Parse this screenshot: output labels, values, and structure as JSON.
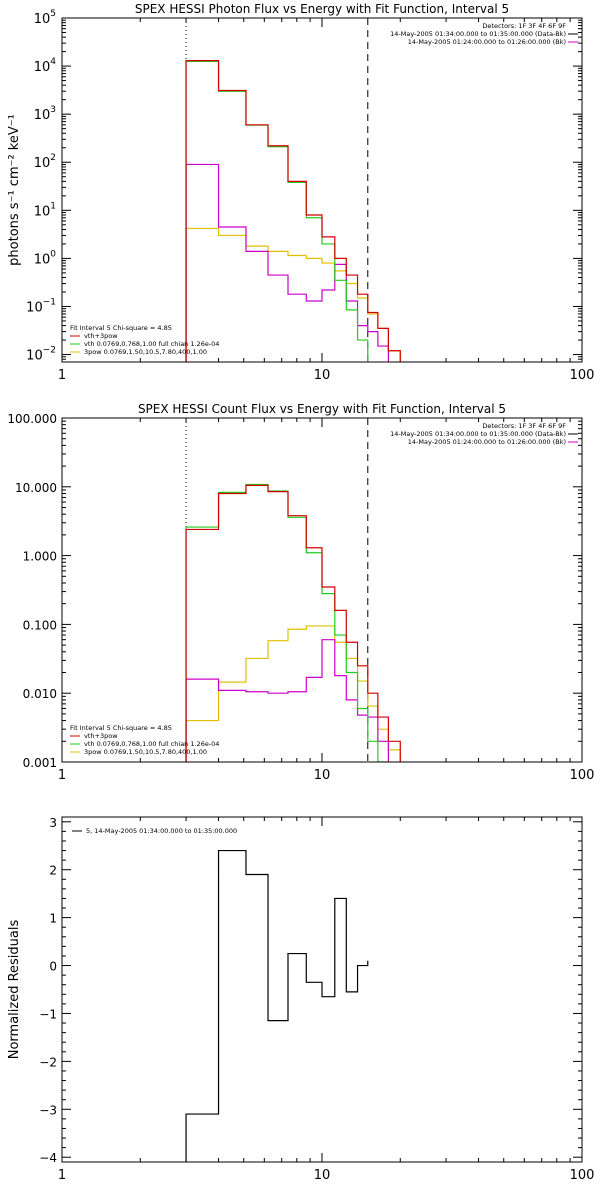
{
  "colors": {
    "total": "#d40000",
    "thermal": "#22cc22",
    "powerlaw": "#e0c000",
    "background": "#cc00cc",
    "data": "#000000",
    "frame": "#000000"
  },
  "chart_data": [
    {
      "type": "line",
      "id": "photon",
      "title": "SPEX HESSI Photon Flux vs Energy with Fit Function, Interval 5",
      "xlabel": "",
      "ylabel": "photons s⁻¹ cm⁻² keV⁻¹",
      "xscale": "log",
      "yscale": "log",
      "xlim": [
        1,
        100
      ],
      "ylim": [
        0.007,
        100000
      ],
      "x_ticks": [
        {
          "v": 1,
          "label": "1"
        },
        {
          "v": 10,
          "label": "10"
        },
        {
          "v": 100,
          "label": "100"
        }
      ],
      "y_ticks": [
        {
          "v": 0.01,
          "base": "10",
          "exp": "−2"
        },
        {
          "v": 0.1,
          "base": "10",
          "exp": "−1"
        },
        {
          "v": 1,
          "base": "10",
          "exp": "0"
        },
        {
          "v": 10,
          "base": "10",
          "exp": "1"
        },
        {
          "v": 100,
          "base": "10",
          "exp": "2"
        },
        {
          "v": 1000,
          "base": "10",
          "exp": "3"
        },
        {
          "v": 10000,
          "base": "10",
          "exp": "4"
        },
        {
          "v": 100000,
          "base": "10",
          "exp": "5"
        }
      ],
      "vlines": [
        {
          "x": 3.0,
          "style": "dotted"
        },
        {
          "x": 15.0,
          "style": "dashed"
        }
      ],
      "header": [
        "Detectors: 1F 3F 4F 6F 9F",
        "14-May-2005 01:34:00.000 to 01:35:00.000 (Data-Bk)",
        "14-May-2005 01:24:00.000 to 01:26:00.000 (Bk)"
      ],
      "legend": [
        "Fit Interval 5   Chi-square = 4.85",
        "vth+3pow",
        "vth 0.0769,0.768,1.00  full chian 1.26e-04",
        "3pow 0.0769,1.50,10.5,7.80,400,1.00"
      ],
      "edges": [
        3.0,
        4.0,
        5.1,
        6.2,
        7.4,
        8.7,
        10.0,
        11.2,
        12.4,
        13.7,
        15.0,
        16.4,
        18.0,
        20.0
      ],
      "series": [
        {
          "name": "total",
          "values": [
            13000,
            3100,
            600,
            220,
            40,
            8,
            2.8,
            1.0,
            0.45,
            0.18,
            0.075,
            0.035,
            0.012
          ]
        },
        {
          "name": "thermal",
          "values": [
            12500,
            3000,
            590,
            210,
            38,
            7,
            2.0,
            0.35,
            0.085,
            0.02,
            0.006
          ]
        },
        {
          "name": "powerlaw",
          "values": [
            4.2,
            3.0,
            1.8,
            1.4,
            1.15,
            1.0,
            0.8,
            0.55,
            0.3,
            0.15,
            0.07,
            0.035,
            0.012
          ]
        },
        {
          "name": "background",
          "values": [
            90,
            4.5,
            1.4,
            0.45,
            0.18,
            0.13,
            0.22,
            0.75,
            0.13,
            0.04,
            0.03,
            0.015
          ]
        }
      ]
    },
    {
      "type": "line",
      "id": "count",
      "title": "SPEX HESSI Count Flux vs Energy with Fit Function, Interval 5",
      "xlabel": "",
      "ylabel": "",
      "xscale": "log",
      "yscale": "log",
      "xlim": [
        1,
        100
      ],
      "ylim": [
        0.001,
        100
      ],
      "x_ticks": [
        {
          "v": 1,
          "label": "1"
        },
        {
          "v": 10,
          "label": "10"
        },
        {
          "v": 100,
          "label": "100"
        }
      ],
      "y_ticks": [
        {
          "v": 0.001,
          "label": "0.001"
        },
        {
          "v": 0.01,
          "label": "0.010"
        },
        {
          "v": 0.1,
          "label": "0.100"
        },
        {
          "v": 1,
          "label": "1.000"
        },
        {
          "v": 10,
          "label": "10.000"
        },
        {
          "v": 100,
          "label": "100.000"
        }
      ],
      "vlines": [
        {
          "x": 3.0,
          "style": "dotted"
        },
        {
          "x": 15.0,
          "style": "dashed"
        }
      ],
      "header": [
        "Detectors: 1F 3F 4F 6F 9F",
        "14-May-2005 01:34:00.000 to 01:35:00.000 (Data-Bk)",
        "14-May-2005 01:24:00.000 to 01:26:00.000 (Bk)"
      ],
      "legend": [
        "Fit Interval 5   Chi-square = 4.85",
        "vth+3pow",
        "vth 0.0769,0.768,1.00  full chian 1.26e-04",
        "3pow 0.0769,1.50,10.5,7.80,400,1.00"
      ],
      "edges": [
        3.0,
        4.0,
        5.1,
        6.2,
        7.4,
        8.7,
        10.0,
        11.2,
        12.4,
        13.7,
        15.0,
        16.4,
        18.0,
        20.0
      ],
      "series": [
        {
          "name": "total",
          "values": [
            2.4,
            8.0,
            10.5,
            8.5,
            3.8,
            1.3,
            0.35,
            0.16,
            0.055,
            0.025,
            0.01,
            0.0045,
            0.002,
            0.001
          ]
        },
        {
          "name": "thermal",
          "values": [
            2.6,
            8.3,
            10.8,
            8.7,
            3.6,
            1.1,
            0.28,
            0.07,
            0.02,
            0.006,
            0.002,
            0.001
          ]
        },
        {
          "name": "powerlaw",
          "values": [
            0.004,
            0.0145,
            0.032,
            0.058,
            0.085,
            0.095,
            0.095,
            0.055,
            0.032,
            0.015,
            0.0065,
            0.003,
            0.0015
          ]
        },
        {
          "name": "background",
          "values": [
            0.016,
            0.011,
            0.0105,
            0.01,
            0.0105,
            0.017,
            0.06,
            0.018,
            0.008,
            0.0048,
            0.0045,
            0.002
          ]
        }
      ]
    },
    {
      "type": "line",
      "id": "residuals",
      "title": "",
      "xlabel": "",
      "ylabel": "Normalized Residuals",
      "xscale": "log",
      "yscale": "linear",
      "xlim": [
        1,
        100
      ],
      "ylim": [
        -4.1,
        3.1
      ],
      "x_ticks": [
        {
          "v": 1,
          "label": "1"
        },
        {
          "v": 10,
          "label": "10"
        },
        {
          "v": 100,
          "label": "100"
        }
      ],
      "y_ticks": [
        {
          "v": -4,
          "label": "−4"
        },
        {
          "v": -3,
          "label": "−3"
        },
        {
          "v": -2,
          "label": "−2"
        },
        {
          "v": -1,
          "label": "−1"
        },
        {
          "v": 0,
          "label": "0"
        },
        {
          "v": 1,
          "label": "1"
        },
        {
          "v": 2,
          "label": "2"
        },
        {
          "v": 3,
          "label": "3"
        }
      ],
      "vlines": [],
      "header": [],
      "legend": [
        "5, 14-May-2005 01:34:00.000 to 01:35:00.000"
      ],
      "edges": [
        3.0,
        4.0,
        5.1,
        6.2,
        7.4,
        8.7,
        10.0,
        11.2,
        12.4,
        13.7,
        15.0
      ],
      "series": [
        {
          "name": "residual",
          "values": [
            -3.1,
            2.4,
            1.9,
            -1.15,
            0.25,
            -0.35,
            -0.65,
            1.4,
            -0.55,
            0.0,
            0.1
          ]
        }
      ]
    }
  ]
}
